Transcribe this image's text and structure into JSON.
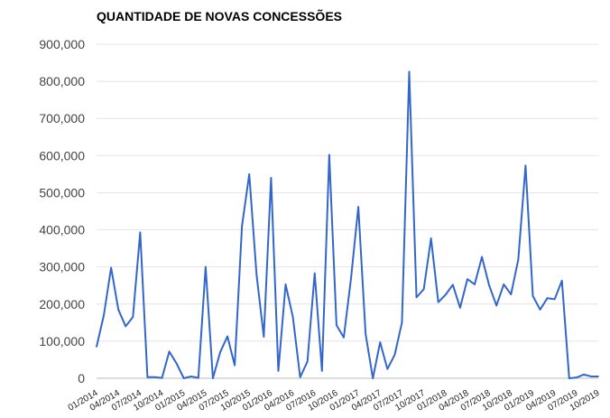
{
  "chart_data": {
    "type": "line",
    "title": "QUANTIDADE DE NOVAS CONCESSÕES",
    "xlabel": "",
    "ylabel": "",
    "ylim": [
      0,
      900000
    ],
    "yticks": [
      0,
      100000,
      200000,
      300000,
      400000,
      500000,
      600000,
      700000,
      800000,
      900000
    ],
    "ytick_labels": [
      "0",
      "100,000",
      "200,000",
      "300,000",
      "400,000",
      "500,000",
      "600,000",
      "700,000",
      "800,000",
      "900,000"
    ],
    "xtick_labels": [
      "01/2014",
      "04/2014",
      "07/2014",
      "10/2014",
      "01/2015",
      "04/2015",
      "07/2015",
      "10/2015",
      "01/2016",
      "04/2016",
      "07/2016",
      "10/2016",
      "01/2017",
      "04/2017",
      "07/2017",
      "10/2017",
      "01/2018",
      "04/2018",
      "07/2018",
      "10/2018",
      "01/2019",
      "04/2019",
      "07/2019",
      "10/2019"
    ],
    "xtick_step_months": 3,
    "grid": true,
    "legend": "none",
    "line_color": "#3366cc",
    "series": [
      {
        "start": "01/2014",
        "values": [
          85000,
          170000,
          298000,
          185000,
          140000,
          165000,
          393000,
          3000,
          3000,
          1000,
          72000,
          40000,
          0,
          5000,
          1000,
          300000,
          0,
          70000,
          113000,
          35000,
          410000,
          550000,
          280000,
          112000,
          540000,
          20000,
          253000,
          165000,
          3000,
          45000,
          283000,
          20000,
          602000,
          143000,
          110000,
          270000,
          462000,
          120000,
          0,
          97000,
          25000,
          63000,
          150000,
          826000,
          218000,
          240000,
          377000,
          205000,
          225000,
          252000,
          190000,
          267000,
          253000,
          327000,
          250000,
          196000,
          253000,
          226000,
          320000,
          573000,
          222000,
          185000,
          216000,
          213000,
          263000,
          0,
          2000,
          10000,
          5000,
          5000
        ]
      }
    ]
  }
}
